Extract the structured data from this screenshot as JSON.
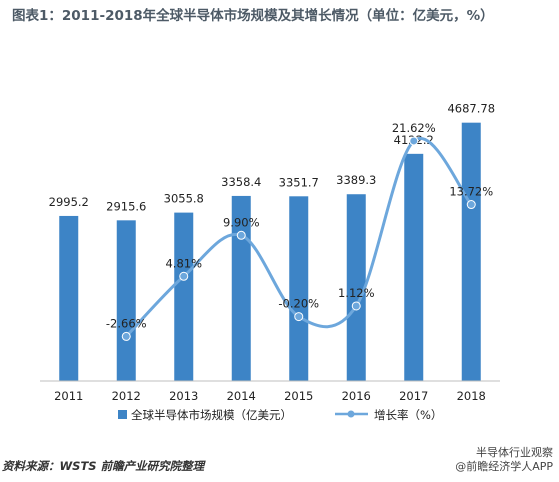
{
  "title": "图表1：2011-2018年全球半导体市场规模及其增长情况（单位：亿美元，%）",
  "source": "资料来源：WSTS 前瞻产业研究院整理",
  "wechat": {
    "label": "半导体行业观察",
    "sublabel": "@前瞻经济学人APP"
  },
  "chart_data": {
    "type": "bar",
    "title": "图表1：2011-2018年全球半导体市场规模及其增长情况（单位：亿美元，%）",
    "categories": [
      "2011",
      "2012",
      "2013",
      "2014",
      "2015",
      "2016",
      "2017",
      "2018"
    ],
    "series": [
      {
        "name": "全球半导体市场规模（亿美元）",
        "type": "bar",
        "color": "#3d84c6",
        "values": [
          2995.2,
          2915.6,
          3055.8,
          3358.4,
          3351.7,
          3389.3,
          4122.2,
          4687.78
        ],
        "labels": [
          "2995.2",
          "2915.6",
          "3055.8",
          "3358.4",
          "3351.7",
          "3389.3",
          "4122.2",
          "4687.78"
        ]
      },
      {
        "name": "增长率（%）",
        "type": "line",
        "color": "#6da7dc",
        "values": [
          null,
          -2.66,
          4.81,
          9.9,
          -0.2,
          1.12,
          21.62,
          13.72
        ],
        "labels": [
          "",
          "-2.66%",
          "4.81%",
          "9.90%",
          "-0.20%",
          "1.12%",
          "21.62%",
          "13.72%"
        ]
      }
    ],
    "legend": {
      "placement": "bottom"
    },
    "grid": false
  }
}
